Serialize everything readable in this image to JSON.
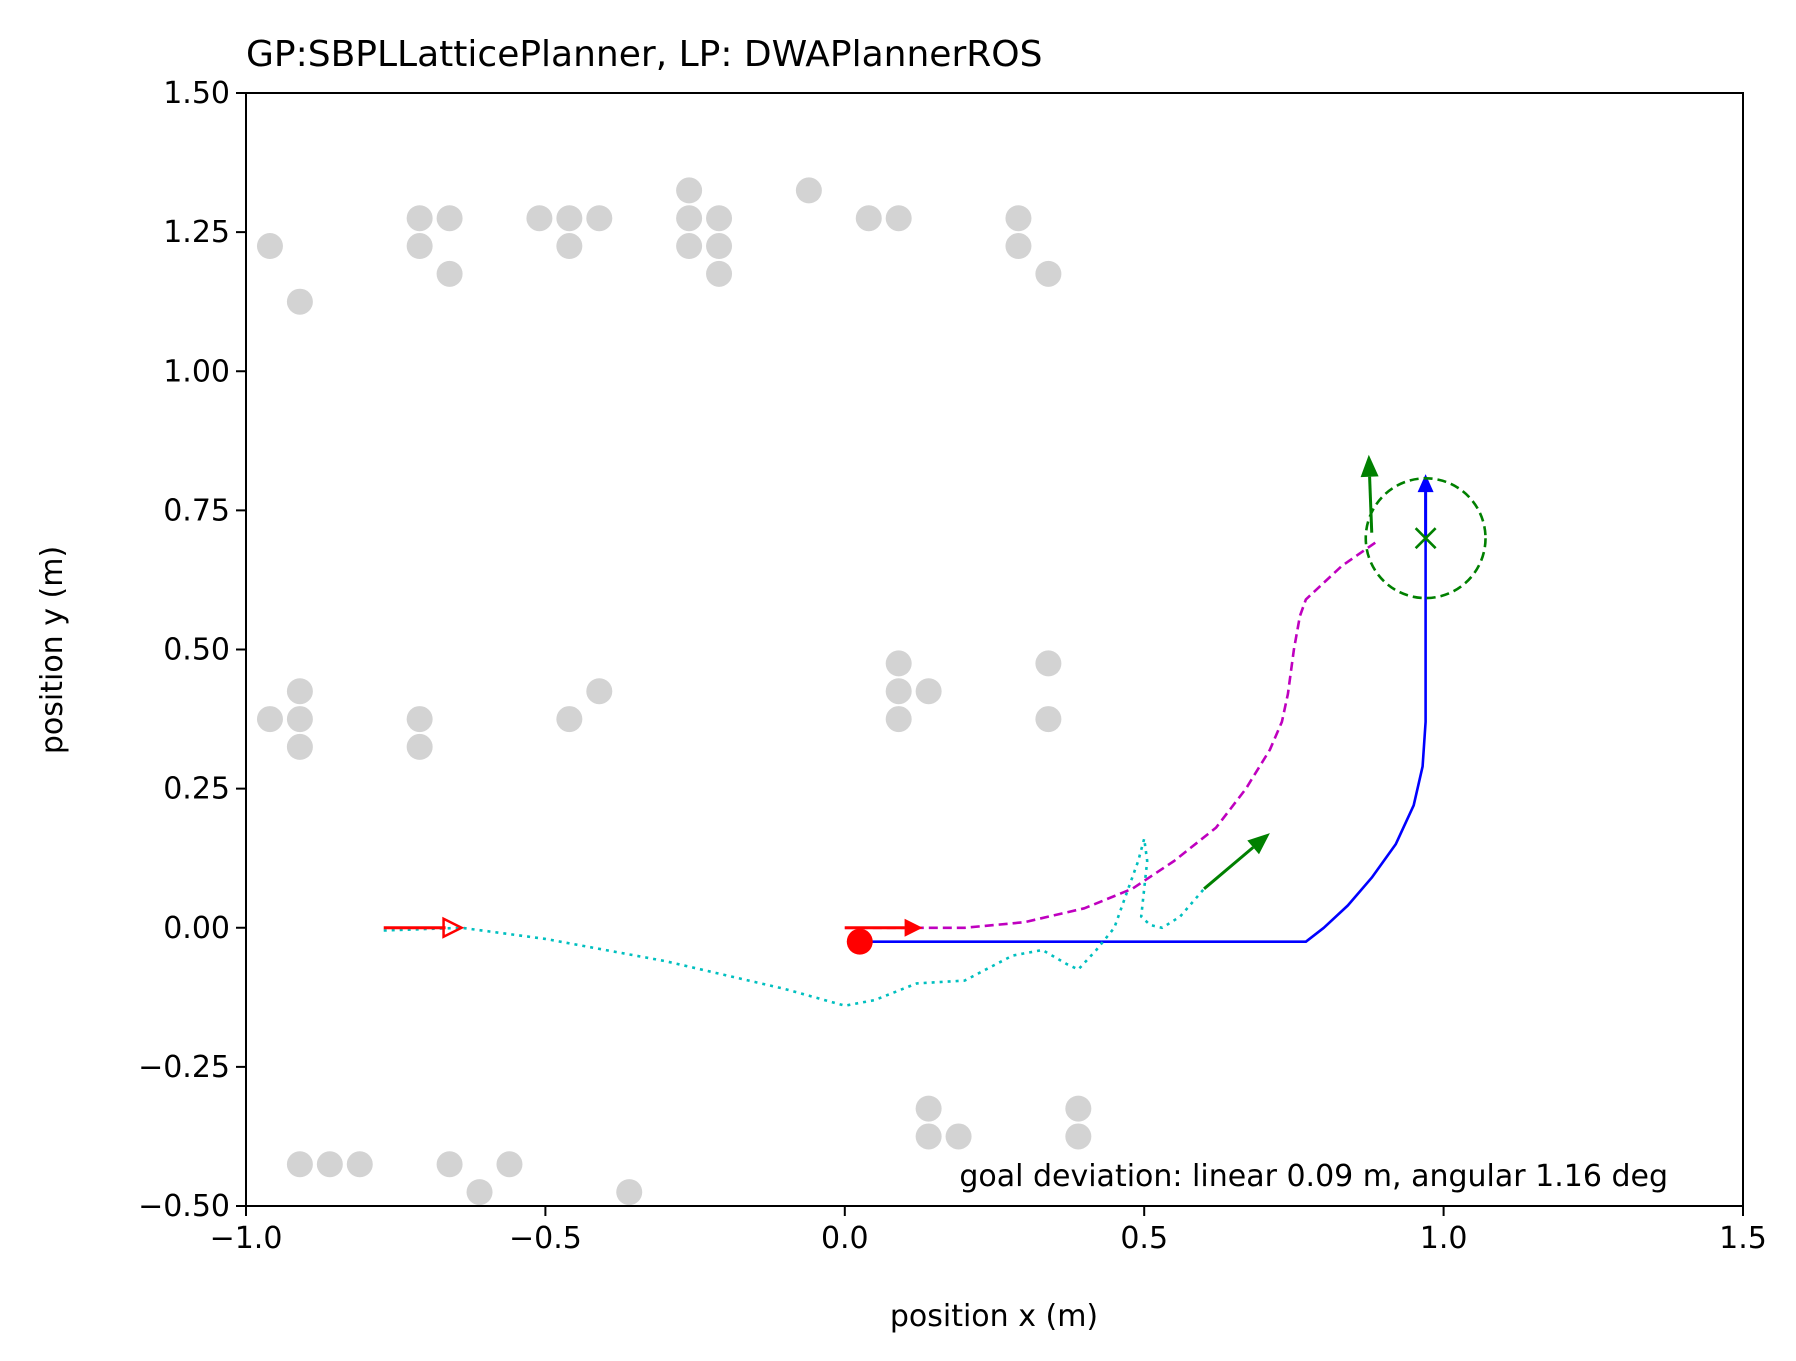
{
  "chart_data": {
    "type": "scatter",
    "title": "GP:SBPLLatticePlanner, LP: DWAPlannerROS",
    "xlabel": "position x (m)",
    "ylabel": "position y (m)",
    "xlim": [
      -1.0,
      1.5
    ],
    "ylim": [
      -0.5,
      1.5
    ],
    "xticks": [
      -1.0,
      -0.5,
      0.0,
      0.5,
      1.0,
      1.5
    ],
    "yticks": [
      -0.5,
      -0.25,
      0.0,
      0.25,
      0.5,
      0.75,
      1.0,
      1.25,
      1.5
    ],
    "xtick_labels": [
      "−1.0",
      "−0.5",
      "0.0",
      "0.5",
      "1.0",
      "1.5"
    ],
    "ytick_labels": [
      "−0.50",
      "−0.25",
      "0.00",
      "0.25",
      "0.50",
      "0.75",
      "1.00",
      "1.25",
      "1.50"
    ],
    "grid": false,
    "annotation": "goal deviation: linear 0.09 m, angular 1.16 deg",
    "obstacles": {
      "color": "#d3d3d3",
      "points": [
        [
          -0.96,
          1.225
        ],
        [
          -0.91,
          1.125
        ],
        [
          -0.71,
          1.275
        ],
        [
          -0.71,
          1.225
        ],
        [
          -0.66,
          1.275
        ],
        [
          -0.66,
          1.175
        ],
        [
          -0.51,
          1.275
        ],
        [
          -0.46,
          1.275
        ],
        [
          -0.46,
          1.225
        ],
        [
          -0.41,
          1.275
        ],
        [
          -0.26,
          1.325
        ],
        [
          -0.26,
          1.275
        ],
        [
          -0.26,
          1.225
        ],
        [
          -0.21,
          1.275
        ],
        [
          -0.21,
          1.225
        ],
        [
          -0.21,
          1.175
        ],
        [
          -0.06,
          1.325
        ],
        [
          0.04,
          1.275
        ],
        [
          0.09,
          1.275
        ],
        [
          0.29,
          1.275
        ],
        [
          0.29,
          1.225
        ],
        [
          0.34,
          1.175
        ],
        [
          -0.96,
          0.375
        ],
        [
          -0.91,
          0.425
        ],
        [
          -0.91,
          0.375
        ],
        [
          -0.91,
          0.325
        ],
        [
          -0.71,
          0.375
        ],
        [
          -0.71,
          0.325
        ],
        [
          -0.46,
          0.375
        ],
        [
          -0.41,
          0.425
        ],
        [
          0.09,
          0.475
        ],
        [
          0.09,
          0.425
        ],
        [
          0.09,
          0.375
        ],
        [
          0.14,
          0.425
        ],
        [
          0.34,
          0.475
        ],
        [
          0.34,
          0.375
        ],
        [
          -0.91,
          -0.425
        ],
        [
          -0.86,
          -0.425
        ],
        [
          -0.81,
          -0.425
        ],
        [
          -0.66,
          -0.425
        ],
        [
          -0.61,
          -0.475
        ],
        [
          -0.56,
          -0.425
        ],
        [
          -0.36,
          -0.475
        ],
        [
          0.14,
          -0.325
        ],
        [
          0.14,
          -0.375
        ],
        [
          0.19,
          -0.375
        ],
        [
          0.39,
          -0.325
        ],
        [
          0.39,
          -0.375
        ]
      ]
    },
    "global_plan": {
      "color": "#0000ff",
      "style": "solid",
      "points": [
        [
          0.02,
          -0.025
        ],
        [
          0.77,
          -0.025
        ],
        [
          0.8,
          0.0
        ],
        [
          0.84,
          0.04
        ],
        [
          0.88,
          0.09
        ],
        [
          0.92,
          0.15
        ],
        [
          0.95,
          0.22
        ],
        [
          0.965,
          0.29
        ],
        [
          0.97,
          0.37
        ],
        [
          0.97,
          0.7
        ],
        [
          0.97,
          0.79
        ]
      ],
      "arrow_at_end": true
    },
    "local_path": {
      "color": "#bf00bf",
      "style": "dashed",
      "points": [
        [
          0.0,
          0.0
        ],
        [
          0.2,
          0.0
        ],
        [
          0.3,
          0.01
        ],
        [
          0.4,
          0.035
        ],
        [
          0.48,
          0.07
        ],
        [
          0.55,
          0.12
        ],
        [
          0.62,
          0.18
        ],
        [
          0.67,
          0.25
        ],
        [
          0.71,
          0.32
        ],
        [
          0.73,
          0.37
        ],
        [
          0.74,
          0.42
        ],
        [
          0.75,
          0.5
        ],
        [
          0.76,
          0.56
        ],
        [
          0.77,
          0.59
        ],
        [
          0.8,
          0.62
        ],
        [
          0.83,
          0.65
        ],
        [
          0.87,
          0.68
        ],
        [
          0.89,
          0.695
        ]
      ]
    },
    "actual_trajectory": {
      "color": "#00bfbf",
      "style": "dotted",
      "points": [
        [
          -0.77,
          -0.005
        ],
        [
          -0.64,
          0.0
        ],
        [
          -0.5,
          -0.02
        ],
        [
          -0.3,
          -0.06
        ],
        [
          -0.1,
          -0.11
        ],
        [
          0.0,
          -0.14
        ],
        [
          0.05,
          -0.13
        ],
        [
          0.12,
          -0.1
        ],
        [
          0.2,
          -0.095
        ],
        [
          0.28,
          -0.05
        ],
        [
          0.33,
          -0.04
        ],
        [
          0.37,
          -0.065
        ],
        [
          0.39,
          -0.075
        ],
        [
          0.42,
          -0.04
        ],
        [
          0.45,
          0.0
        ],
        [
          0.47,
          0.06
        ],
        [
          0.49,
          0.12
        ],
        [
          0.5,
          0.16
        ],
        [
          0.505,
          0.12
        ],
        [
          0.5,
          0.07
        ],
        [
          0.495,
          0.02
        ],
        [
          0.51,
          0.005
        ],
        [
          0.53,
          0.0
        ],
        [
          0.56,
          0.02
        ],
        [
          0.6,
          0.07
        ]
      ]
    },
    "start_pose": {
      "x": -0.64,
      "y": 0.0,
      "dx": 0.13,
      "dy": 0.0,
      "color": "#ff0000"
    },
    "current_pose_arrow": {
      "x": 0.0,
      "y": 0.0,
      "dx": 0.13,
      "dy": 0.0,
      "color": "#ff0000"
    },
    "robot_position": {
      "x": 0.025,
      "y": -0.025,
      "color": "#ff0000"
    },
    "intermediate_arrow": {
      "x": 0.6,
      "y": 0.07,
      "dx": 0.11,
      "dy": 0.1,
      "color": "#008000"
    },
    "goal_orientation_arrow": {
      "x": 0.88,
      "y": 0.71,
      "dx": -0.005,
      "dy": 0.14,
      "color": "#008000"
    },
    "goal": {
      "x": 0.97,
      "y": 0.7,
      "radius": 0.1,
      "color": "#008000"
    }
  }
}
